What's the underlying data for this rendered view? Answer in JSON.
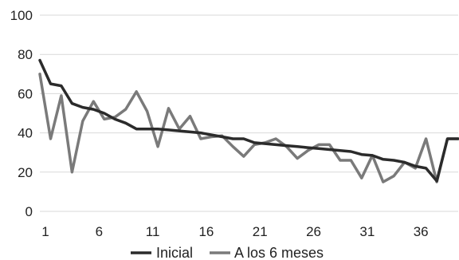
{
  "chart_data": {
    "type": "line",
    "title": "",
    "xlabel": "",
    "ylabel": "",
    "ylim": [
      0,
      100
    ],
    "y_ticks": [
      0,
      20,
      40,
      60,
      80,
      100
    ],
    "x_ticks": [
      1,
      6,
      11,
      16,
      21,
      26,
      31,
      36
    ],
    "x": [
      1,
      2,
      3,
      4,
      5,
      6,
      7,
      8,
      9,
      10,
      11,
      12,
      13,
      14,
      15,
      16,
      17,
      18,
      19,
      20,
      21,
      22,
      23,
      24,
      25,
      26,
      27,
      28,
      29,
      30,
      31,
      32,
      33,
      34,
      35,
      36,
      37,
      38,
      39,
      40
    ],
    "grid": "horizontal",
    "legend_position": "bottom",
    "series": [
      {
        "name": "Inicial",
        "color": "#2b2b2b",
        "values": [
          77,
          65,
          64,
          55,
          53,
          52,
          50,
          47,
          45,
          42,
          42,
          42,
          41.5,
          41,
          40.5,
          40,
          39,
          38,
          37,
          37,
          35,
          34.5,
          34,
          33.5,
          33,
          32.5,
          32,
          31.5,
          31,
          30.5,
          29,
          28.5,
          26.5,
          26,
          25,
          23,
          22,
          15.5,
          37,
          37
        ]
      },
      {
        "name": "A los 6 meses",
        "color": "#7a7a7a",
        "values": [
          70,
          37,
          59,
          20,
          46,
          56,
          47,
          48,
          52,
          61,
          51,
          33,
          52.5,
          42,
          48.5,
          37,
          38,
          38.5,
          33,
          28,
          34,
          35,
          37,
          33,
          27,
          31,
          34,
          34,
          26,
          26,
          17,
          28.5,
          15,
          18,
          25,
          22,
          37,
          15,
          37,
          37
        ]
      }
    ]
  }
}
